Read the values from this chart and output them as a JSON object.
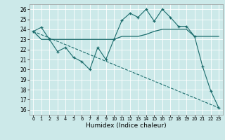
{
  "title": "",
  "xlabel": "Humidex (Indice chaleur)",
  "bg_color": "#cce9e9",
  "grid_color": "#ffffff",
  "line_color": "#1a6b6b",
  "xlim": [
    -0.5,
    23.5
  ],
  "ylim": [
    15.5,
    26.5
  ],
  "yticks": [
    16,
    17,
    18,
    19,
    20,
    21,
    22,
    23,
    24,
    25,
    26
  ],
  "xticks": [
    0,
    1,
    2,
    3,
    4,
    5,
    6,
    7,
    8,
    9,
    10,
    11,
    12,
    13,
    14,
    15,
    16,
    17,
    18,
    19,
    20,
    21,
    22,
    23
  ],
  "line1_x": [
    0,
    1,
    2,
    3,
    4,
    5,
    6,
    7,
    8,
    9,
    10,
    11,
    12,
    13,
    14,
    15,
    16,
    17,
    18,
    19,
    20,
    21,
    22,
    23
  ],
  "line1_y": [
    23.8,
    24.2,
    23.0,
    21.8,
    22.2,
    21.2,
    20.8,
    20.0,
    22.2,
    21.0,
    23.0,
    24.9,
    25.6,
    25.2,
    26.0,
    24.8,
    26.0,
    25.2,
    24.3,
    24.3,
    23.3,
    20.3,
    17.9,
    16.2
  ],
  "line2_x": [
    0,
    1,
    2,
    3,
    4,
    5,
    6,
    7,
    8,
    9,
    10,
    11,
    12,
    13,
    14,
    15,
    16,
    17,
    18,
    19,
    20,
    21,
    22,
    23
  ],
  "line2_y": [
    23.8,
    23.0,
    23.0,
    23.0,
    23.0,
    23.0,
    23.0,
    23.0,
    23.0,
    23.0,
    23.0,
    23.3,
    23.3,
    23.3,
    23.5,
    23.8,
    24.0,
    24.0,
    24.0,
    24.0,
    23.3,
    23.3,
    23.3,
    23.3
  ],
  "line3_x": [
    0,
    23
  ],
  "line3_y": [
    23.8,
    16.2
  ]
}
